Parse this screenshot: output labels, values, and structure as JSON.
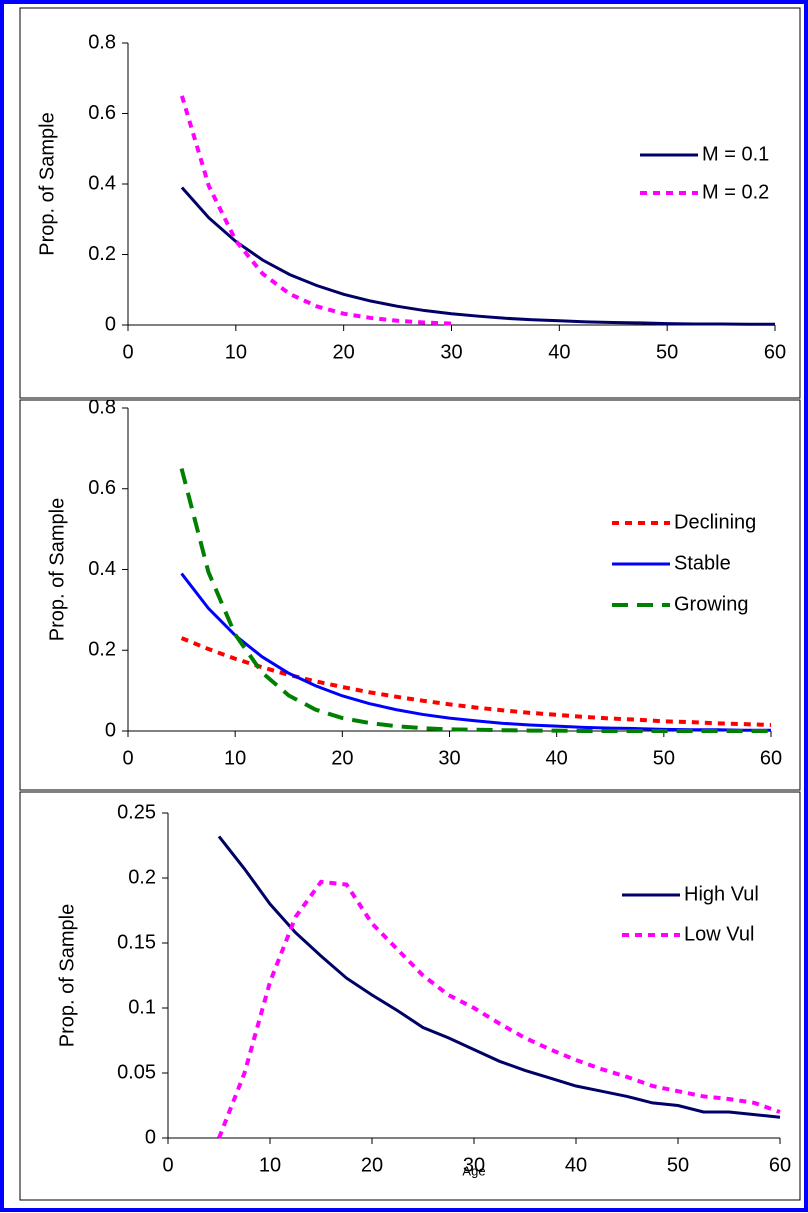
{
  "chart_data": [
    {
      "type": "line",
      "ylabel": "Prop. of Sample",
      "x": [
        5,
        7.5,
        10,
        12.5,
        15,
        17.5,
        20,
        22.5,
        25,
        27.5,
        30,
        32.5,
        35,
        37.5,
        40,
        42.5,
        45,
        47.5,
        50,
        52.5,
        55,
        57.5,
        60
      ],
      "series": [
        {
          "name": "M = 0.1",
          "color": "#000066",
          "style": "solid",
          "values": [
            0.39,
            0.304,
            0.237,
            0.184,
            0.143,
            0.112,
            0.087,
            0.068,
            0.053,
            0.041,
            0.032,
            0.025,
            0.019,
            0.015,
            0.012,
            0.009,
            0.007,
            0.006,
            0.004,
            0.003,
            0.003,
            0.002,
            0.002
          ]
        },
        {
          "name": "M = 0.2",
          "color": "#ff00ff",
          "style": "dotted",
          "values": [
            0.65,
            0.394,
            0.239,
            0.145,
            0.088,
            0.053,
            0.032,
            0.02,
            0.012,
            0.007,
            0.004,
            null,
            null,
            null,
            null,
            null,
            null,
            null,
            null,
            null,
            null,
            null,
            null
          ]
        }
      ],
      "xlim": [
        0,
        60
      ],
      "xticks": [
        0,
        10,
        20,
        30,
        40,
        50,
        60
      ],
      "ylim": [
        0,
        0.8
      ],
      "yticks": [
        0,
        0.2,
        0.4,
        0.6,
        0.8
      ]
    },
    {
      "type": "line",
      "ylabel": "Prop. of Sample",
      "x": [
        5,
        7.5,
        10,
        12.5,
        15,
        17.5,
        20,
        22.5,
        25,
        27.5,
        30,
        32.5,
        35,
        37.5,
        40,
        42.5,
        45,
        47.5,
        50,
        52.5,
        55,
        57.5,
        60
      ],
      "series": [
        {
          "name": "Declining",
          "color": "#ff0000",
          "style": "dotted",
          "values": [
            0.23,
            0.203,
            0.179,
            0.158,
            0.139,
            0.123,
            0.109,
            0.096,
            0.085,
            0.075,
            0.066,
            0.058,
            0.051,
            0.045,
            0.04,
            0.035,
            0.031,
            0.028,
            0.024,
            0.022,
            0.019,
            0.017,
            0.015
          ]
        },
        {
          "name": "Stable",
          "color": "#0000ff",
          "style": "solid",
          "values": [
            0.39,
            0.304,
            0.237,
            0.184,
            0.143,
            0.112,
            0.087,
            0.068,
            0.053,
            0.041,
            0.032,
            0.025,
            0.019,
            0.015,
            0.012,
            0.009,
            0.007,
            0.006,
            0.004,
            0.003,
            0.003,
            0.002,
            0.002
          ]
        },
        {
          "name": "Growing",
          "color": "#008000",
          "style": "dashed",
          "values": [
            0.65,
            0.394,
            0.239,
            0.145,
            0.088,
            0.053,
            0.032,
            0.02,
            0.012,
            0.007,
            0.004,
            0.003,
            0.002,
            0.001,
            0.001,
            0,
            0,
            0,
            0,
            0,
            0,
            0,
            0
          ]
        }
      ],
      "xlim": [
        0,
        60
      ],
      "xticks": [
        0,
        10,
        20,
        30,
        40,
        50,
        60
      ],
      "ylim": [
        0,
        0.8
      ],
      "yticks": [
        0,
        0.2,
        0.4,
        0.6,
        0.8
      ]
    },
    {
      "type": "line",
      "ylabel": "Prop. of Sample",
      "xlabel": "Age",
      "x": [
        5,
        7.5,
        10,
        12.5,
        15,
        17.5,
        20,
        22.5,
        25,
        27.5,
        30,
        32.5,
        35,
        37.5,
        40,
        42.5,
        45,
        47.5,
        50,
        52.5,
        55,
        57.5,
        60
      ],
      "series": [
        {
          "name": "High Vul",
          "color": "#000066",
          "style": "solid",
          "values": [
            0.232,
            0.207,
            0.18,
            0.158,
            0.14,
            0.123,
            0.11,
            0.098,
            0.085,
            0.077,
            0.068,
            0.059,
            0.052,
            0.046,
            0.04,
            0.036,
            0.032,
            0.027,
            0.025,
            0.02,
            0.02,
            0.018,
            0.016
          ]
        },
        {
          "name": "Low Vul",
          "color": "#ff00ff",
          "style": "dotted",
          "values": [
            0,
            0.05,
            0.12,
            0.17,
            0.197,
            0.195,
            0.165,
            0.145,
            0.125,
            0.11,
            0.1,
            0.088,
            0.077,
            0.068,
            0.06,
            0.053,
            0.047,
            0.04,
            0.036,
            0.032,
            0.03,
            0.027,
            0.02
          ]
        }
      ],
      "xlim": [
        0,
        60
      ],
      "xticks": [
        0,
        10,
        20,
        30,
        40,
        50,
        60
      ],
      "ylim": [
        0,
        0.25
      ],
      "yticks": [
        0,
        0.05,
        0.1,
        0.15,
        0.2,
        0.25
      ]
    }
  ]
}
